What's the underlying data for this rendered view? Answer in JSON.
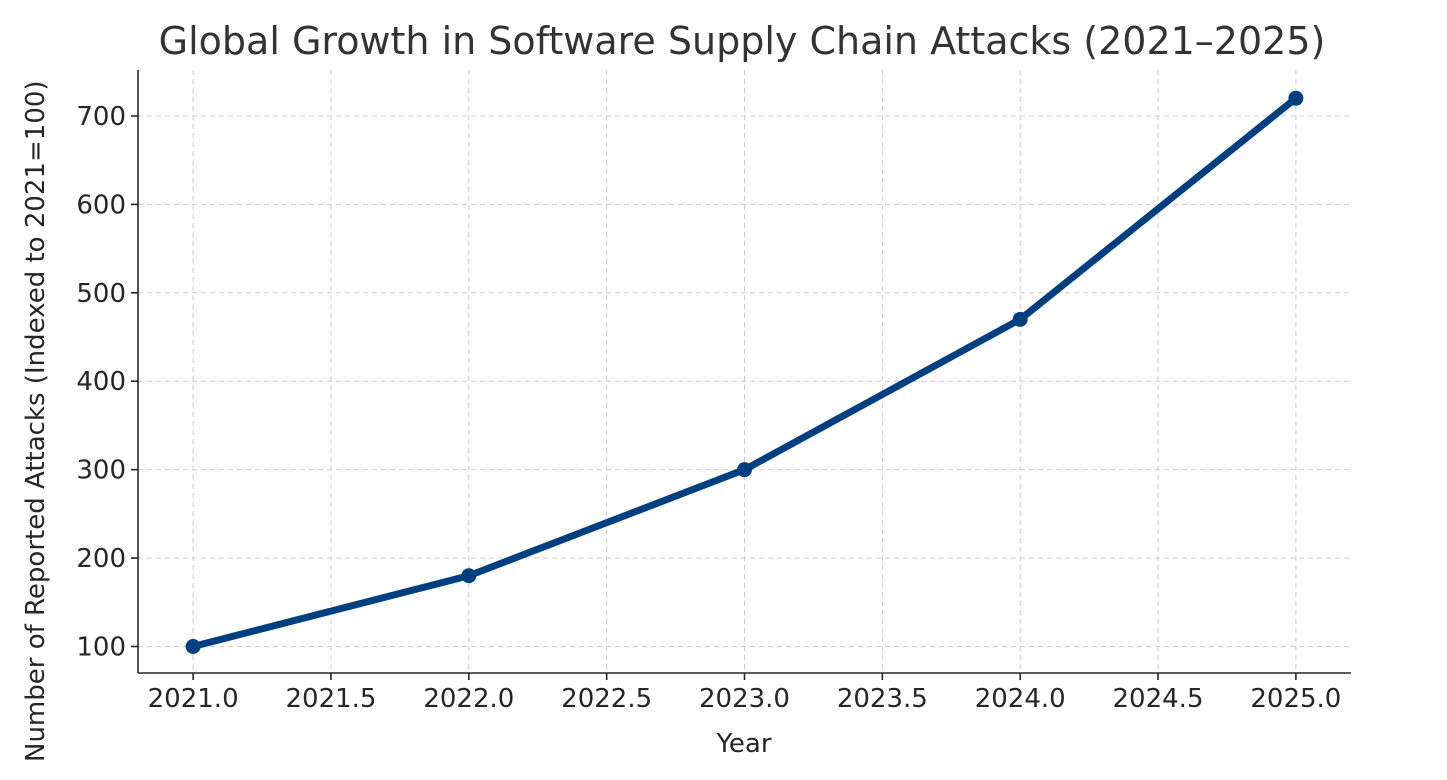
{
  "chart_data": {
    "type": "line",
    "title": "Global Growth in Software Supply Chain Attacks (2021–2025)",
    "xlabel": "Year",
    "ylabel": "Number of Reported Attacks (Indexed to 2021=100)",
    "xlim": [
      2020.8,
      2025.2
    ],
    "ylim": [
      70,
      752
    ],
    "x_ticks": [
      2021.0,
      2021.5,
      2022.0,
      2022.5,
      2023.0,
      2023.5,
      2024.0,
      2024.5,
      2025.0
    ],
    "x_tick_labels": [
      "2021.0",
      "2021.5",
      "2022.0",
      "2022.5",
      "2023.0",
      "2023.5",
      "2024.0",
      "2024.5",
      "2025.0"
    ],
    "y_ticks": [
      100,
      200,
      300,
      400,
      500,
      600,
      700
    ],
    "y_tick_labels": [
      "100",
      "200",
      "300",
      "400",
      "500",
      "600",
      "700"
    ],
    "grid": true,
    "x": [
      2021,
      2022,
      2023,
      2024,
      2025
    ],
    "series": [
      {
        "values": [
          100,
          180,
          300,
          470,
          720
        ]
      }
    ],
    "colors": {
      "line": "#004080"
    }
  }
}
